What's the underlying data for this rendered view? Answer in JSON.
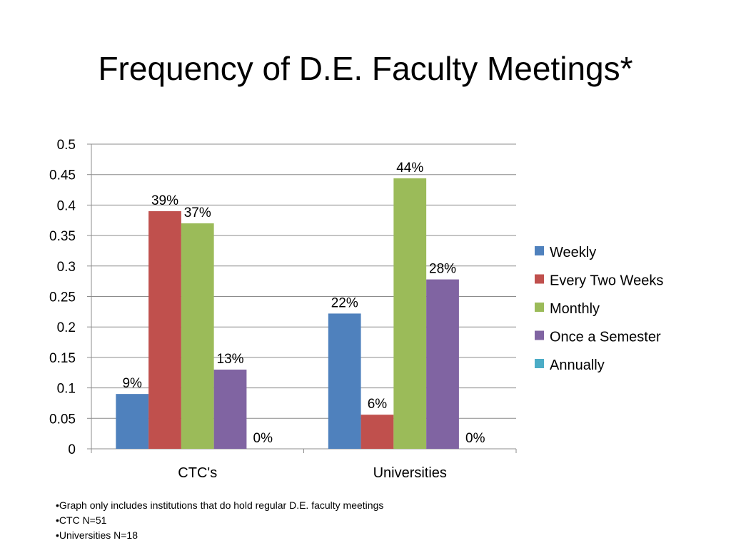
{
  "slide": {
    "title": "Frequency of D.E. Faculty Meetings*",
    "notes": [
      "•Graph only includes institutions that do hold regular D.E. faculty meetings",
      "•CTC N=51",
      "•Universities N=18"
    ]
  },
  "chart_data": {
    "type": "bar",
    "categories": [
      "CTC's",
      "Universities"
    ],
    "series": [
      {
        "name": "Weekly",
        "color": "#4F81BD",
        "values": [
          0.09,
          0.222
        ],
        "labels": [
          "9%",
          "22%"
        ]
      },
      {
        "name": "Every Two Weeks",
        "color": "#C0504D",
        "values": [
          0.39,
          0.056
        ],
        "labels": [
          "39%",
          "6%"
        ]
      },
      {
        "name": "Monthly",
        "color": "#9BBB59",
        "values": [
          0.37,
          0.444
        ],
        "labels": [
          "37%",
          "44%"
        ]
      },
      {
        "name": "Once a Semester",
        "color": "#8064A2",
        "values": [
          0.13,
          0.278
        ],
        "labels": [
          "13%",
          "28%"
        ]
      },
      {
        "name": "Annually",
        "color": "#4BACC6",
        "values": [
          0,
          0
        ],
        "labels": [
          "0%",
          "0%"
        ]
      }
    ],
    "yticks": [
      "0",
      "0.05",
      "0.1",
      "0.15",
      "0.2",
      "0.25",
      "0.3",
      "0.35",
      "0.4",
      "0.45",
      "0.5"
    ],
    "ylim": [
      0,
      0.5
    ],
    "grid": true,
    "legend": "right"
  }
}
